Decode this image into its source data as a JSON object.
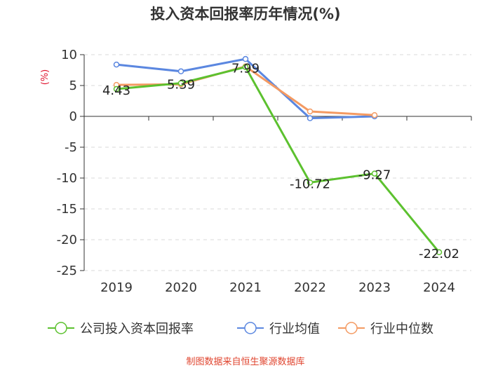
{
  "chart_data": {
    "type": "line",
    "title": "投入资本回报率历年情况(%)",
    "ylabel": "(%)",
    "categories": [
      "2019",
      "2020",
      "2021",
      "2022",
      "2023",
      "2024"
    ],
    "ylim": [
      -25,
      10
    ],
    "yticks": [
      10,
      5,
      0,
      -5,
      -10,
      -15,
      -20,
      -25
    ],
    "grid": true,
    "legend_position": "bottom",
    "series": [
      {
        "name": "公司投入资本回报率",
        "color": "#5cc12f",
        "values": [
          4.43,
          5.39,
          7.99,
          -10.72,
          -9.27,
          -22.02
        ],
        "labels": [
          "4.43",
          "5.39",
          "7.99",
          "-10.72",
          "-9.27",
          "-22.02"
        ]
      },
      {
        "name": "行业均值",
        "color": "#5b87e0",
        "values": [
          8.4,
          7.3,
          9.3,
          -0.3,
          0.0,
          null
        ]
      },
      {
        "name": "行业中位数",
        "color": "#f49a62",
        "values": [
          5.1,
          5.2,
          8.1,
          0.8,
          0.2,
          null
        ]
      }
    ],
    "footer": "制图数据来自恒生聚源数据库"
  }
}
